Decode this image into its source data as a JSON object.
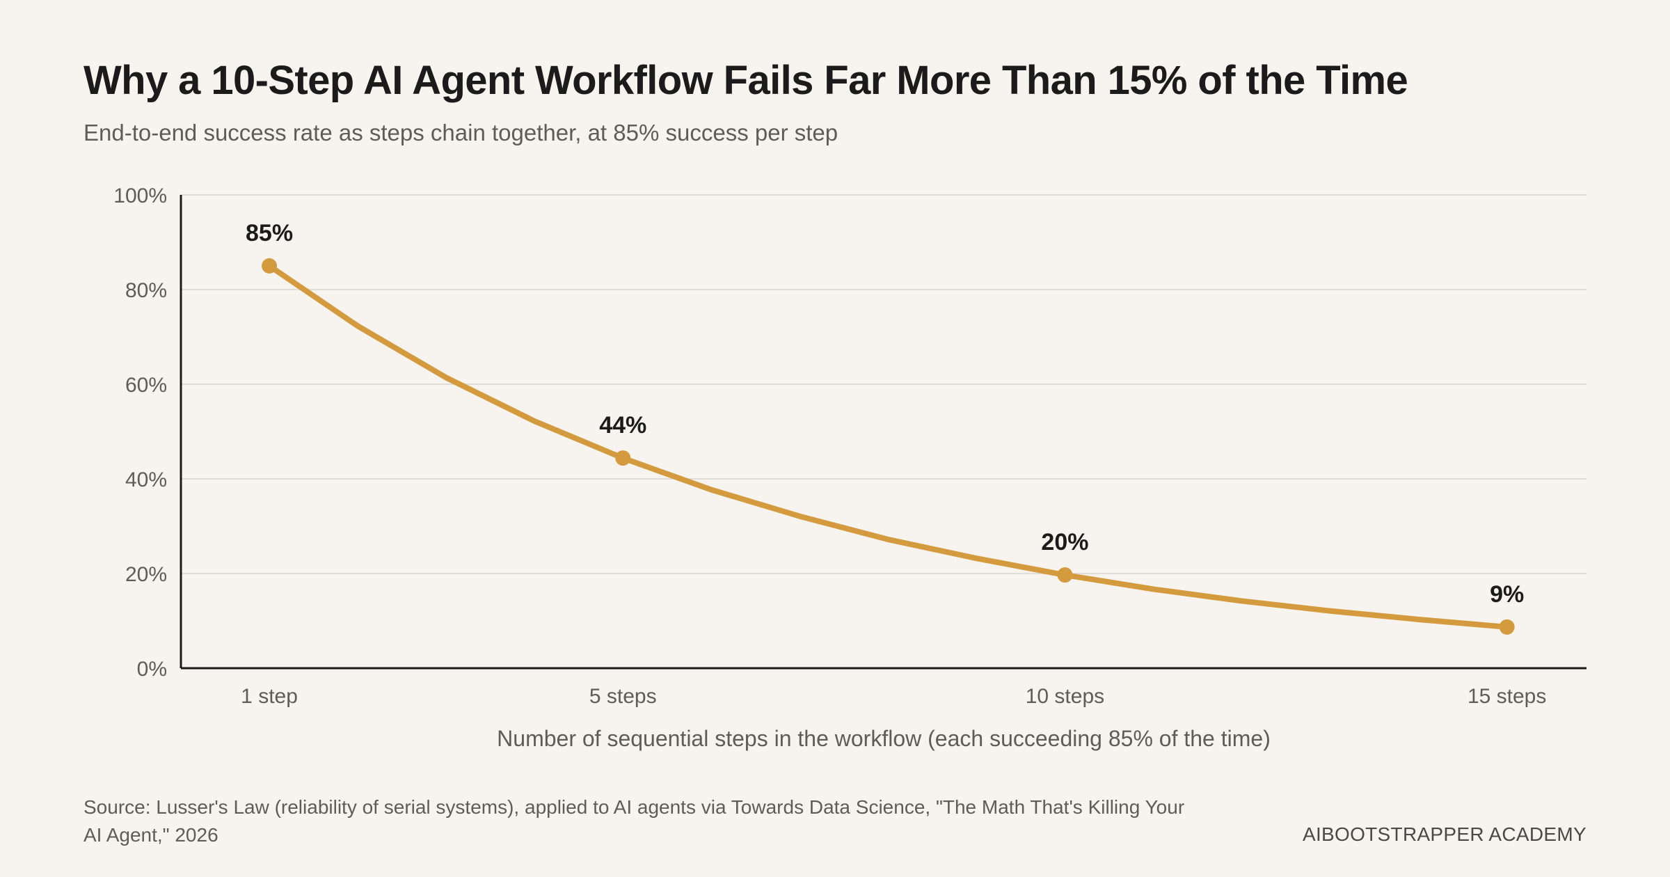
{
  "title": "Why a 10-Step AI Agent Workflow Fails Far More Than 15% of the Time",
  "subtitle": "End-to-end success rate as steps chain together, at 85% success per step",
  "source": "Source: Lusser's Law (reliability of serial systems), applied to AI agents via Towards Data Science, \"The Math That's Killing Your AI Agent,\" 2026",
  "brand": "AIBOOTSTRAPPER ACADEMY",
  "colors": {
    "line": "#d49a3e",
    "grid": "#e2ddd6",
    "axis": "#1b1b1b",
    "tick_text": "#5f5c58",
    "label_text": "#1b1b1b"
  },
  "chart_data": {
    "type": "line",
    "xlabel": "Number of sequential steps in the workflow (each succeeding 85% of the time)",
    "ylabel": "",
    "xlim": [
      1,
      15
    ],
    "ylim": [
      0,
      100
    ],
    "yticks": [
      0,
      20,
      40,
      60,
      80,
      100
    ],
    "ytick_labels": [
      "0%",
      "20%",
      "40%",
      "60%",
      "80%",
      "100%"
    ],
    "xticks": [
      1,
      5,
      10,
      15
    ],
    "xtick_labels": [
      "1 step",
      "5 steps",
      "10 steps",
      "15 steps"
    ],
    "grid": true,
    "series": [
      {
        "x": [
          1,
          2,
          3,
          4,
          5,
          6,
          7,
          8,
          9,
          10,
          11,
          12,
          13,
          14,
          15
        ],
        "values": [
          85,
          72.3,
          61.4,
          52.2,
          44.4,
          37.7,
          32.1,
          27.2,
          23.2,
          19.7,
          16.7,
          14.2,
          12.1,
          10.3,
          8.7
        ]
      }
    ],
    "highlighted_points": [
      {
        "x": 1,
        "y": 85,
        "label": "85%"
      },
      {
        "x": 5,
        "y": 44.4,
        "label": "44%"
      },
      {
        "x": 10,
        "y": 19.7,
        "label": "20%"
      },
      {
        "x": 15,
        "y": 8.7,
        "label": "9%"
      }
    ]
  }
}
